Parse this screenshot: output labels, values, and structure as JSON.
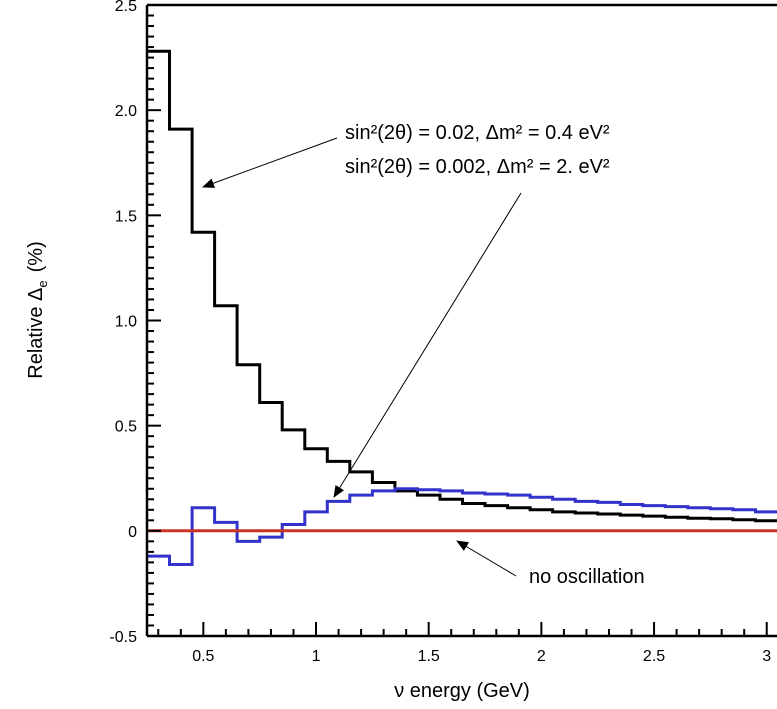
{
  "chart_data": {
    "type": "line",
    "step": true,
    "xlabel": "ν energy (GeV)",
    "ylabel_main": "Relative Δ",
    "ylabel_sub": "e",
    "ylabel_unit": "(%)",
    "xlim": [
      0.25,
      3.05
    ],
    "ylim": [
      -0.5,
      2.5
    ],
    "x_ticks": [
      0.5,
      1,
      1.5,
      2,
      2.5,
      3
    ],
    "x_tick_labels": [
      "0.5",
      "1",
      "1.5",
      "2",
      "2.5",
      "3"
    ],
    "y_ticks": [
      -0.5,
      0,
      0.5,
      1.0,
      1.5,
      2.0,
      2.5
    ],
    "y_tick_labels": [
      "-0.5",
      "0",
      "0.5",
      "1.0",
      "1.5",
      "2.0",
      "2.5"
    ],
    "grid": false,
    "bin_edges": [
      0.25,
      0.35,
      0.45,
      0.55,
      0.65,
      0.75,
      0.85,
      0.95,
      1.05,
      1.15,
      1.25,
      1.35,
      1.45,
      1.55,
      1.65,
      1.75,
      1.85,
      1.95,
      2.05,
      2.15,
      2.25,
      2.35,
      2.45,
      2.55,
      2.65,
      2.75,
      2.85,
      2.95,
      3.05
    ],
    "series": [
      {
        "color": "#000000",
        "values": [
          2.28,
          1.91,
          1.42,
          1.07,
          0.79,
          0.61,
          0.48,
          0.39,
          0.33,
          0.28,
          0.23,
          0.19,
          0.17,
          0.15,
          0.13,
          0.12,
          0.11,
          0.1,
          0.09,
          0.085,
          0.08,
          0.075,
          0.07,
          0.065,
          0.06,
          0.057,
          0.053,
          0.048
        ]
      },
      {
        "color": "#3333cc",
        "values": [
          -0.12,
          -0.16,
          0.11,
          0.04,
          -0.05,
          -0.03,
          0.03,
          0.09,
          0.14,
          0.17,
          0.19,
          0.2,
          0.195,
          0.19,
          0.18,
          0.175,
          0.17,
          0.16,
          0.15,
          0.14,
          0.135,
          0.125,
          0.12,
          0.115,
          0.11,
          0.105,
          0.1,
          0.09
        ]
      },
      {
        "color": "#cc3322",
        "values": [
          0,
          0,
          0,
          0,
          0,
          0,
          0,
          0,
          0,
          0,
          0,
          0,
          0,
          0,
          0,
          0,
          0,
          0,
          0,
          0,
          0,
          0,
          0,
          0,
          0,
          0,
          0,
          0
        ]
      }
    ],
    "annotations": {
      "label1": "sin²(2θ) = 0.02,  Δm² = 0.4 eV²",
      "label2": "sin²(2θ) = 0.002,  Δm² = 2. eV²",
      "label3": "no oscillation"
    }
  }
}
